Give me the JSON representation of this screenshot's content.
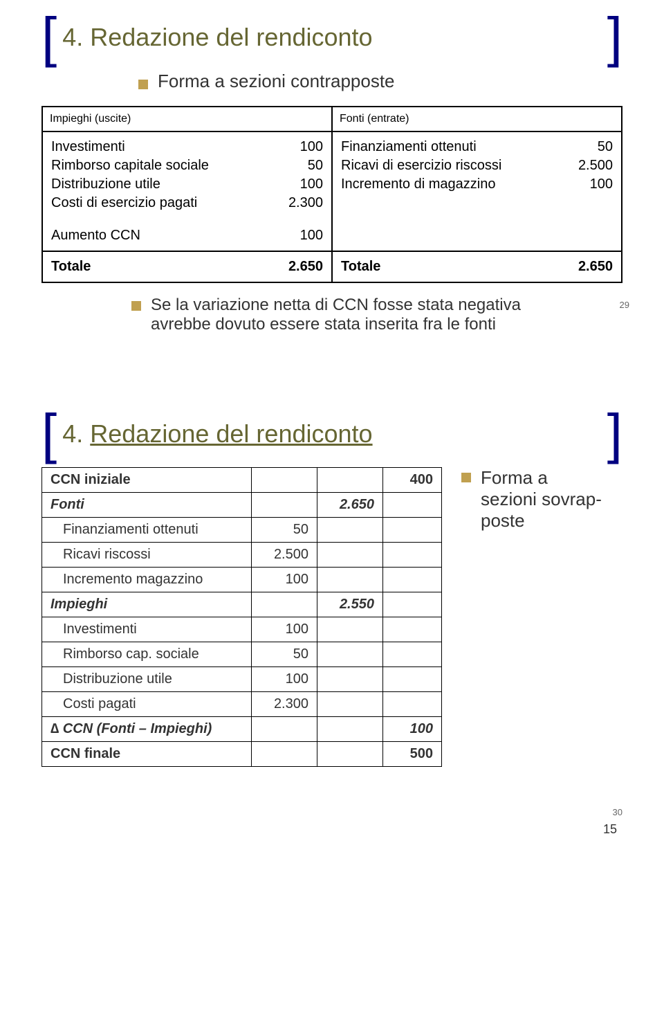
{
  "slide1": {
    "title": "4. Redazione del rendiconto",
    "subtitle": "Forma a sezioni contrapposte",
    "left_header": "Impieghi (uscite)",
    "right_header": "Fonti (entrate)",
    "left_rows": [
      {
        "label": "Investimenti",
        "value": "100"
      },
      {
        "label": "Rimborso capitale sociale",
        "value": "50"
      },
      {
        "label": "Distribuzione utile",
        "value": "100"
      },
      {
        "label": "Costi di esercizio pagati",
        "value": "2.300"
      }
    ],
    "right_rows": [
      {
        "label": "Finanziamenti ottenuti",
        "value": "50"
      },
      {
        "label": "Ricavi di esercizio riscossi",
        "value": "2.500"
      },
      {
        "label": "Incremento di magazzino",
        "value": "100"
      }
    ],
    "aumento_label": "Aumento CCN",
    "aumento_value": "100",
    "totale_label": "Totale",
    "totale_left": "2.650",
    "totale_right": "2.650",
    "note": "Se la variazione netta di CCN fosse stata negativa avrebbe dovuto essere stata inserita fra le fonti",
    "slidenum": "29"
  },
  "slide2": {
    "title_prefix": "4. ",
    "title_link": "Redazione del rendiconto",
    "side_label": "Forma a sezioni sovrap-poste",
    "rows": [
      {
        "label": "CCN iniziale",
        "c1": "",
        "c2": "",
        "c3": "400",
        "bold": true
      },
      {
        "label": "Fonti",
        "c1": "",
        "c2": "2.650",
        "c3": "",
        "ital": true
      },
      {
        "label": "Finanziamenti ottenuti",
        "c1": "50",
        "c2": "",
        "c3": "",
        "indent": true
      },
      {
        "label": "Ricavi riscossi",
        "c1": "2.500",
        "c2": "",
        "c3": "",
        "indent": true
      },
      {
        "label": "Incremento magazzino",
        "c1": "100",
        "c2": "",
        "c3": "",
        "indent": true
      },
      {
        "label": "Impieghi",
        "c1": "",
        "c2": "2.550",
        "c3": "",
        "ital": true
      },
      {
        "label": "Investimenti",
        "c1": "100",
        "c2": "",
        "c3": "",
        "indent": true
      },
      {
        "label": "Rimborso cap. sociale",
        "c1": "50",
        "c2": "",
        "c3": "",
        "indent": true
      },
      {
        "label": "Distribuzione utile",
        "c1": "100",
        "c2": "",
        "c3": "",
        "indent": true
      },
      {
        "label": "Costi pagati",
        "c1": "2.300",
        "c2": "",
        "c3": "",
        "indent": true
      },
      {
        "label": "∆ CCN (Fonti – Impieghi)",
        "c1": "",
        "c2": "",
        "c3": "100",
        "ital": true
      },
      {
        "label": "CCN finale",
        "c1": "",
        "c2": "",
        "c3": "500",
        "bold": true
      }
    ],
    "slidenum": "30"
  },
  "page_number": "15",
  "colors": {
    "title": "#666633",
    "bracket": "#000080",
    "bullet": "#c0a050"
  }
}
